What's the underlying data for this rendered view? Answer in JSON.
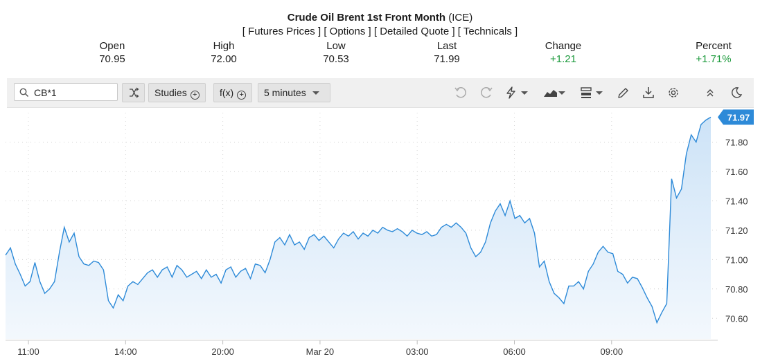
{
  "header": {
    "title_bold": "Crude Oil Brent 1st Front Month",
    "title_suffix": " (ICE)",
    "links": [
      "[ Futures Prices ]",
      "[ Options ]",
      "[ Detailed Quote ]",
      "[ Technicals ]"
    ]
  },
  "stats": {
    "open": {
      "label": "Open",
      "value": "70.95"
    },
    "high": {
      "label": "High",
      "value": "72.00"
    },
    "low": {
      "label": "Low",
      "value": "70.53"
    },
    "last": {
      "label": "Last",
      "value": "71.99"
    },
    "change": {
      "label": "Change",
      "value": "+1.21"
    },
    "percent": {
      "label": "Percent",
      "value": "+1.71%"
    }
  },
  "toolbar": {
    "symbol": "CB*1",
    "studies_label": "Studies",
    "fx_label": "f(x)",
    "interval_label": "5 minutes"
  },
  "colors": {
    "line": "#2d8ad8",
    "area_top": "#cde3f7",
    "area_bottom": "#f3f8fd",
    "badge": "#2d8ad8",
    "positive": "#1c9a3c"
  },
  "icons": [
    "search-icon",
    "swap-icon",
    "undo-icon",
    "redo-icon",
    "lightning-icon",
    "area-chart-icon",
    "bars-icon",
    "pencil-icon",
    "download-icon",
    "gear-icon",
    "collapse-icon",
    "moon-icon"
  ],
  "chart_data": {
    "type": "area",
    "title": "",
    "xlabel": "",
    "ylabel": "",
    "ylim": [
      70.46,
      72.0
    ],
    "y_ticks": [
      "71.80",
      "71.60",
      "71.40",
      "71.20",
      "71.00",
      "70.80",
      "70.60"
    ],
    "x_tick_labels": [
      "11:00",
      "14:00",
      "20:00",
      "Mar 20",
      "03:00",
      "06:00",
      "09:00"
    ],
    "last_value_label": "71.97",
    "grid": true,
    "series": [
      {
        "values": [
          71.03,
          71.08,
          70.97,
          70.9,
          70.82,
          70.85,
          70.98,
          70.85,
          70.77,
          70.8,
          70.85,
          71.05,
          71.22,
          71.12,
          71.18,
          71.02,
          70.97,
          70.96,
          70.99,
          70.98,
          70.93,
          70.72,
          70.67,
          70.76,
          70.72,
          70.82,
          70.85,
          70.83,
          70.87,
          70.91,
          70.93,
          70.88,
          70.93,
          70.95,
          70.88,
          70.96,
          70.93,
          70.88,
          70.9,
          70.92,
          70.87,
          70.93,
          70.88,
          70.9,
          70.84,
          70.93,
          70.95,
          70.88,
          70.92,
          70.94,
          70.87,
          70.97,
          70.96,
          70.91,
          71.0,
          71.12,
          71.15,
          71.1,
          71.17,
          71.1,
          71.12,
          71.07,
          71.15,
          71.17,
          71.13,
          71.16,
          71.12,
          71.08,
          71.14,
          71.18,
          71.16,
          71.19,
          71.14,
          71.18,
          71.16,
          71.2,
          71.18,
          71.22,
          71.2,
          71.19,
          71.21,
          71.19,
          71.16,
          71.2,
          71.18,
          71.17,
          71.19,
          71.16,
          71.17,
          71.22,
          71.24,
          71.22,
          71.25,
          71.22,
          71.18,
          71.08,
          71.02,
          71.05,
          71.12,
          71.25,
          71.33,
          71.38,
          71.3,
          71.4,
          71.28,
          71.3,
          71.25,
          71.28,
          71.18,
          70.95,
          70.99,
          70.85,
          70.77,
          70.74,
          70.7,
          70.82,
          70.82,
          70.85,
          70.8,
          70.92,
          70.97,
          71.05,
          71.09,
          71.05,
          71.04,
          70.92,
          70.9,
          70.84,
          70.88,
          70.87,
          70.81,
          70.74,
          70.68,
          70.57,
          70.64,
          70.7,
          71.55,
          71.42,
          71.48,
          71.72,
          71.85,
          71.8,
          71.92,
          71.95,
          71.97
        ]
      }
    ]
  }
}
